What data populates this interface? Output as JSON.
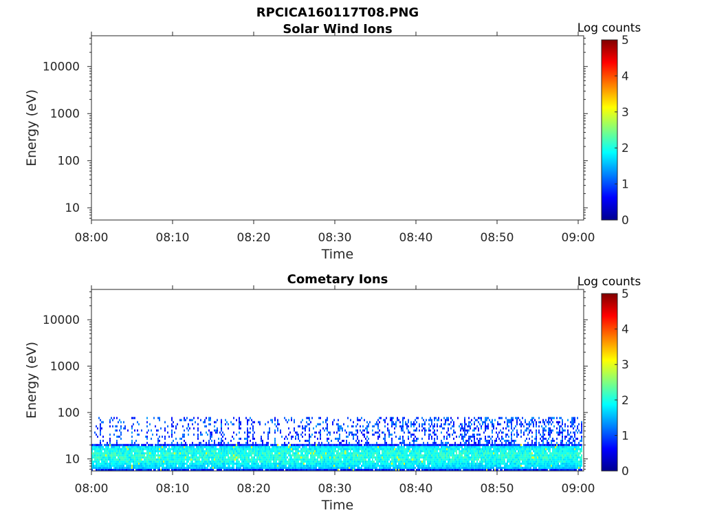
{
  "figure_title": "RPCICA160117T08.PNG",
  "colormap": [
    "#00008f",
    "#0000ff",
    "#0080ff",
    "#00ffff",
    "#80ff80",
    "#ffff00",
    "#ff8000",
    "#ff0000",
    "#800000"
  ],
  "chart_data": [
    {
      "type": "heatmap",
      "title": "Solar Wind Ions",
      "xlabel": "Time",
      "ylabel": "Energy (eV)",
      "x_ticks": [
        "08:00",
        "08:10",
        "08:20",
        "08:30",
        "08:40",
        "08:50",
        "09:00"
      ],
      "x_range": [
        "08:00",
        "09:00"
      ],
      "y_ticks": [
        10,
        100,
        1000,
        10000
      ],
      "y_tick_labels": [
        "10",
        "100",
        "1000",
        "10000"
      ],
      "y_scale": "log",
      "ylim": [
        5.5,
        45000
      ],
      "colorbar": {
        "label": "Log counts",
        "range": [
          0,
          5
        ],
        "ticks": [
          "0",
          "1",
          "2",
          "3",
          "4",
          "5"
        ]
      },
      "data": "empty"
    },
    {
      "type": "heatmap",
      "title": "Cometary Ions",
      "xlabel": "Time",
      "ylabel": "Energy (eV)",
      "x_ticks": [
        "08:00",
        "08:10",
        "08:20",
        "08:30",
        "08:40",
        "08:50",
        "09:00"
      ],
      "x_range": [
        "08:00",
        "09:00"
      ],
      "y_ticks": [
        10,
        100,
        1000,
        10000
      ],
      "y_tick_labels": [
        "10",
        "100",
        "1000",
        "10000"
      ],
      "y_scale": "log",
      "ylim": [
        5.5,
        45000
      ],
      "colorbar": {
        "label": "Log counts",
        "range": [
          0,
          5
        ],
        "ticks": [
          "0",
          "1",
          "2",
          "3",
          "4",
          "5"
        ]
      },
      "data": {
        "energy_range_eV": [
          5.5,
          80
        ],
        "dense_band_eV": [
          5.5,
          22
        ],
        "dense_log_counts": [
          1.0,
          2.4
        ],
        "sparse_upper_log_counts": [
          0.5,
          1.4
        ],
        "time_range": [
          "08:00",
          "09:00"
        ]
      }
    }
  ]
}
